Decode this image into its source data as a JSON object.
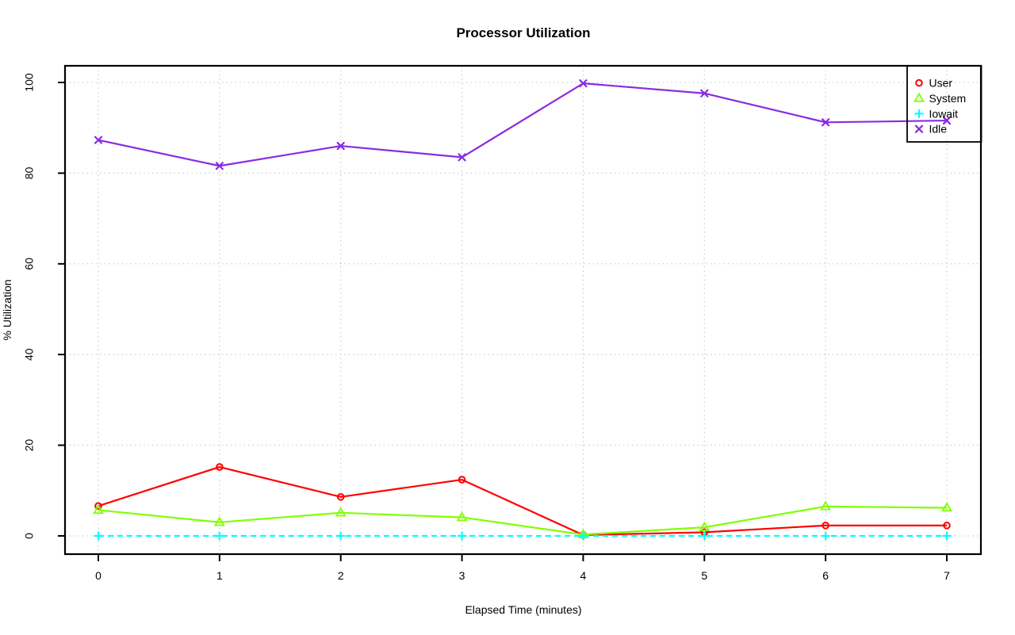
{
  "figure": {
    "background": "#FFFFFF",
    "border_color": "#000000",
    "grid_color": "#C4C4C4",
    "text_color": "#000000"
  },
  "chart_data": {
    "type": "line",
    "title": "Processor Utilization",
    "xlabel": "Elapsed Time (minutes)",
    "ylabel": "% Utilization",
    "x": [
      0,
      1,
      2,
      3,
      4,
      5,
      6,
      7
    ],
    "xtick_labels": [
      "0",
      "1",
      "2",
      "3",
      "4",
      "5",
      "6",
      "7"
    ],
    "ytick_values": [
      0,
      20,
      40,
      60,
      80,
      100
    ],
    "ytick_labels": [
      "0",
      "20",
      "40",
      "60",
      "80",
      "100"
    ],
    "xlim": [
      0,
      7
    ],
    "ylim": [
      0,
      100
    ],
    "grid": "dotted",
    "legend_position": "topright",
    "legend_entries": [
      "User",
      "System",
      "Iowait",
      "Idle"
    ],
    "series": [
      {
        "name": "User",
        "color": "#FF0000",
        "marker": "circle",
        "line_style": "solid",
        "values": [
          6.6,
          15.2,
          8.6,
          12.4,
          0.2,
          0.8,
          2.3,
          2.3
        ]
      },
      {
        "name": "System",
        "color": "#80FF00",
        "marker": "triangle",
        "line_style": "solid",
        "values": [
          5.7,
          3.0,
          5.1,
          4.1,
          0.3,
          1.9,
          6.5,
          6.2
        ]
      },
      {
        "name": "Iowait",
        "color": "#00FFFF",
        "marker": "plus",
        "line_style": "dashed",
        "values": [
          0,
          0,
          0,
          0,
          0,
          0,
          0,
          0
        ]
      },
      {
        "name": "Idle",
        "color": "#8A2BE2",
        "marker": "x",
        "line_style": "solid",
        "values": [
          87.3,
          81.6,
          86.0,
          83.5,
          99.8,
          97.6,
          91.2,
          91.6
        ]
      }
    ]
  }
}
